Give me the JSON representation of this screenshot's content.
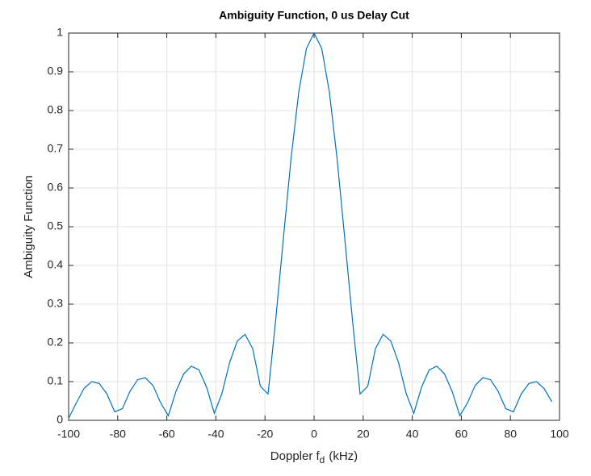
{
  "chart_data": {
    "type": "line",
    "title": "Ambiguity Function, 0 us Delay Cut",
    "xlabel": [
      "Doppler f",
      "d",
      "(kHz)"
    ],
    "ylabel": "Ambiguity Function",
    "x": [
      -100,
      -96.875,
      -93.75,
      -90.625,
      -87.5,
      -84.375,
      -81.25,
      -78.125,
      -75,
      -71.875,
      -68.75,
      -65.625,
      -62.5,
      -59.375,
      -56.25,
      -53.125,
      -50,
      -46.875,
      -43.75,
      -40.625,
      -37.5,
      -34.375,
      -31.25,
      -28.125,
      -25,
      -21.875,
      -18.75,
      -15.625,
      -12.5,
      -9.375,
      -6.25,
      -3.125,
      0,
      3.125,
      6.25,
      9.375,
      12.5,
      15.625,
      18.75,
      21.875,
      25,
      28.125,
      31.25,
      34.375,
      37.5,
      40.625,
      43.75,
      46.875,
      50,
      53.125,
      56.25,
      59.375,
      62.5,
      65.625,
      68.75,
      71.875,
      75,
      78.125,
      81.25,
      84.375,
      87.5,
      90.625,
      93.75,
      96.875
    ],
    "values": [
      0.005,
      0.045,
      0.082,
      0.1,
      0.095,
      0.068,
      0.022,
      0.03,
      0.075,
      0.105,
      0.11,
      0.09,
      0.045,
      0.012,
      0.075,
      0.12,
      0.14,
      0.13,
      0.085,
      0.018,
      0.07,
      0.15,
      0.205,
      0.222,
      0.185,
      0.088,
      0.068,
      0.26,
      0.47,
      0.676,
      0.847,
      0.96,
      1,
      0.96,
      0.847,
      0.676,
      0.47,
      0.26,
      0.068,
      0.088,
      0.185,
      0.222,
      0.205,
      0.15,
      0.07,
      0.018,
      0.085,
      0.13,
      0.14,
      0.12,
      0.075,
      0.012,
      0.045,
      0.09,
      0.11,
      0.105,
      0.075,
      0.03,
      0.022,
      0.068,
      0.095,
      0.1,
      0.082,
      0.048
    ],
    "color": "#0072bd",
    "xlim": [
      -100,
      100
    ],
    "xticks": [
      -100,
      -80,
      -60,
      -40,
      -20,
      0,
      20,
      40,
      60,
      80,
      100
    ],
    "ylim": [
      0,
      1
    ],
    "yticks": [
      0,
      0.1,
      0.2,
      0.3,
      0.4,
      0.5,
      0.6,
      0.7,
      0.8,
      0.9,
      1
    ],
    "grid": true
  }
}
